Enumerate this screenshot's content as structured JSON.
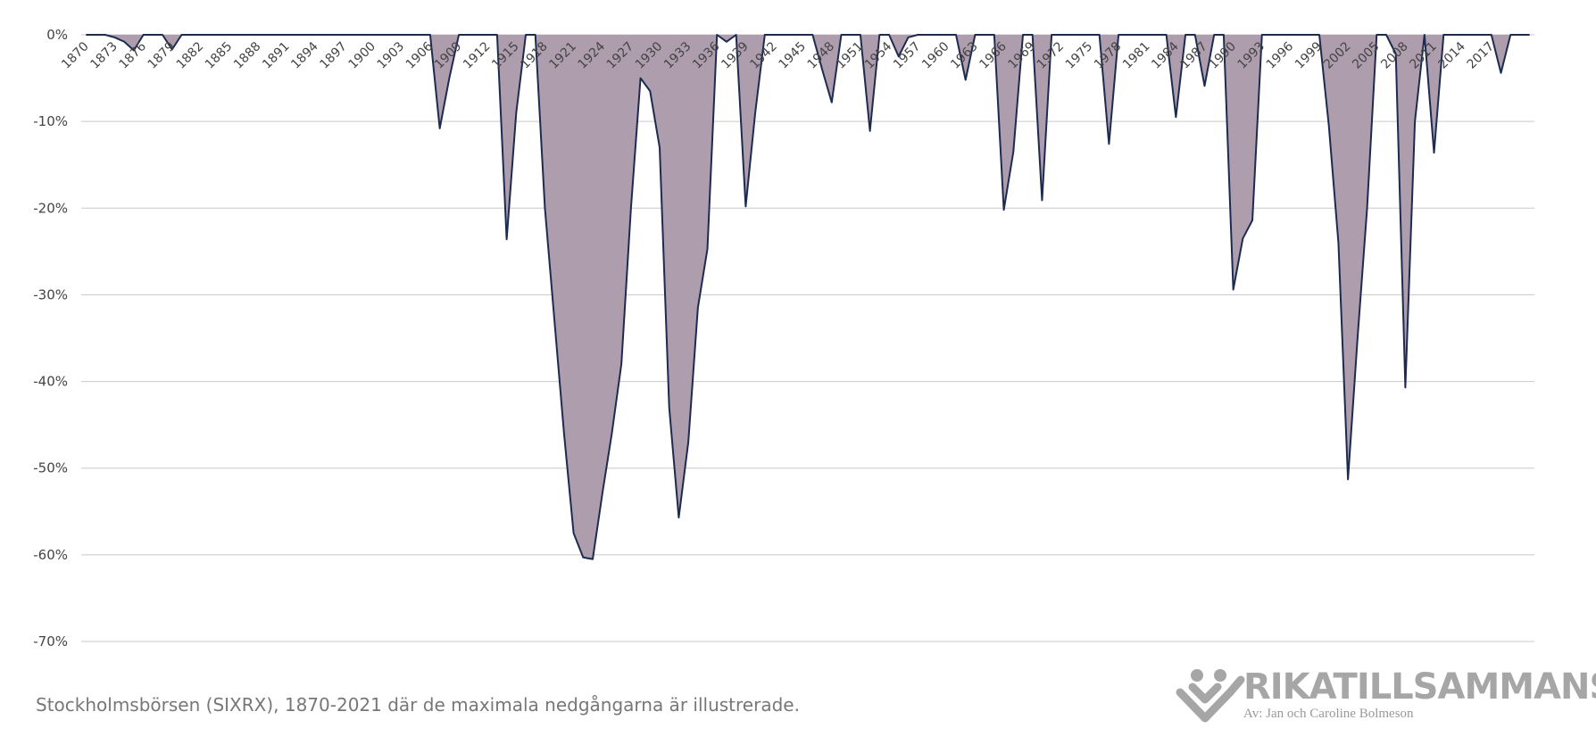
{
  "chart_data": {
    "type": "area",
    "caption": "Stockholmsbörsen (SIXRX), 1870-2021 där de maximala nedgångarna är illustrerade.",
    "logo": {
      "name": "RIKATILLSAMMANS",
      "byline": "Av: Jan och Caroline Bolmeson"
    },
    "categories": [
      "1870",
      null,
      null,
      "1873",
      null,
      null,
      "1876",
      null,
      null,
      "1879",
      null,
      null,
      "1882",
      null,
      null,
      "1885",
      null,
      null,
      "1888",
      null,
      null,
      "1891",
      null,
      null,
      "1894",
      null,
      null,
      "1897",
      null,
      null,
      "1900",
      null,
      null,
      "1903",
      null,
      null,
      "1906",
      null,
      null,
      "1909",
      null,
      null,
      "1912",
      null,
      null,
      "1915",
      null,
      null,
      "1918",
      null,
      null,
      "1921",
      null,
      null,
      "1924",
      null,
      null,
      "1927",
      null,
      null,
      "1930",
      null,
      null,
      "1933",
      null,
      null,
      "1936",
      null,
      null,
      "1939",
      null,
      null,
      "1942",
      null,
      null,
      "1945",
      null,
      null,
      "1948",
      null,
      null,
      "1951",
      null,
      null,
      "1954",
      null,
      null,
      "1957",
      null,
      null,
      "1960",
      null,
      null,
      "1963",
      null,
      null,
      "1966",
      null,
      null,
      "1969",
      null,
      null,
      "1972",
      null,
      null,
      "1975",
      null,
      null,
      "1978",
      null,
      null,
      "1981",
      null,
      null,
      "1984",
      null,
      null,
      "1987",
      null,
      null,
      "1990",
      null,
      null,
      "1993",
      null,
      null,
      "1996",
      null,
      null,
      "1999",
      null,
      null,
      "2002",
      null,
      null,
      "2005",
      null,
      null,
      "2008",
      null,
      null,
      "2011",
      null,
      null,
      "2014",
      null,
      null,
      "2017",
      null,
      null,
      null,
      null
    ],
    "values": [
      0,
      0,
      0,
      -0.3,
      -0.8,
      -1.8,
      0,
      0,
      0,
      -1.7,
      0,
      0,
      0,
      0,
      0,
      0,
      0,
      0,
      0,
      0,
      0,
      0,
      0,
      0,
      0,
      0,
      0,
      0,
      0,
      0,
      0,
      0,
      0,
      0,
      0,
      0,
      0,
      -10.8,
      -5,
      0,
      0,
      0,
      0,
      0,
      -23.6,
      -9,
      0,
      0,
      -20,
      -33,
      -46,
      -57.5,
      -60.3,
      -60.5,
      -53,
      -46,
      -38,
      -20,
      -5,
      -6.5,
      -13,
      -43,
      -55.7,
      -47,
      -31.5,
      -24.7,
      0,
      -0.8,
      0,
      -19.8,
      -9,
      0,
      0,
      0,
      0,
      0,
      0,
      -4,
      -7.8,
      0,
      0,
      0,
      -11.1,
      0,
      0,
      -2.5,
      -0.3,
      0,
      0,
      0,
      0,
      0,
      -5.2,
      0,
      0,
      0,
      -20.2,
      -13.5,
      0,
      0,
      -19.1,
      0,
      0,
      0,
      0,
      0,
      0,
      -12.6,
      0,
      0,
      0,
      0,
      0,
      0,
      -9.5,
      0,
      0,
      -5.9,
      0,
      0,
      -29.4,
      -23.5,
      -21.4,
      0,
      0,
      0,
      0,
      0,
      0,
      0,
      -10.5,
      -24,
      -51.3,
      -35,
      -20,
      0,
      0,
      -2.2,
      -40.7,
      -10,
      0,
      -13.6,
      0,
      0,
      0,
      0,
      0,
      0,
      -4.4,
      0,
      0,
      0
    ],
    "fill": "#ad9dad",
    "color": "#1c2b4f",
    "ylim": [
      -70,
      0
    ],
    "yticks": [
      {
        "value": 0,
        "label": "0%"
      },
      {
        "value": -10,
        "label": "-10%"
      },
      {
        "value": -20,
        "label": "-20%"
      },
      {
        "value": -30,
        "label": "-30%"
      },
      {
        "value": -40,
        "label": "-40%"
      },
      {
        "value": -50,
        "label": "-50%"
      },
      {
        "value": -60,
        "label": "-60%"
      },
      {
        "value": -70,
        "label": "-70%"
      }
    ],
    "grid": true
  }
}
